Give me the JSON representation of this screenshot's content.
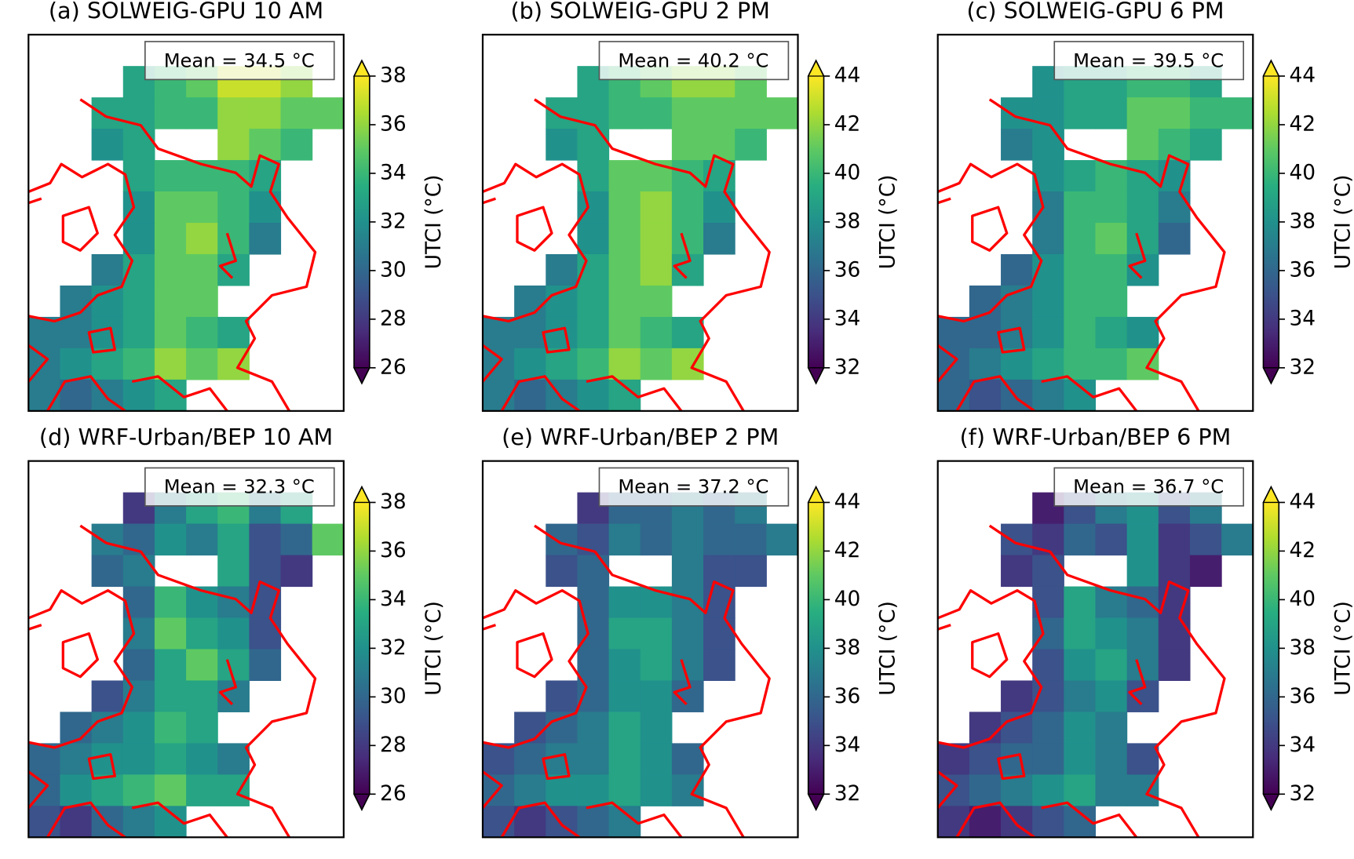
{
  "chart_data": [
    {
      "type": "heatmap",
      "title": "(a) SOLWEIG-GPU 10 AM",
      "annotation": "Mean = 34.5 °C",
      "colorbar_label": "UTCI (°C)",
      "colormap": "viridis",
      "extend": "both",
      "zlim": [
        26,
        38
      ],
      "zticks": [
        26,
        28,
        30,
        32,
        34,
        36,
        38
      ],
      "z": [
        [
          null,
          null,
          null,
          null,
          null,
          null,
          null,
          null,
          null,
          null
        ],
        [
          null,
          null,
          null,
          33,
          34,
          35,
          37,
          37,
          36,
          null
        ],
        [
          null,
          null,
          33,
          33,
          34,
          34,
          36,
          36,
          35,
          35
        ],
        [
          null,
          null,
          32,
          33,
          null,
          null,
          36,
          35,
          34,
          null
        ],
        [
          null,
          null,
          null,
          33,
          34,
          34,
          34,
          33,
          null,
          null
        ],
        [
          null,
          null,
          null,
          32,
          35,
          35,
          34,
          32,
          null,
          null
        ],
        [
          null,
          null,
          null,
          32,
          35,
          36,
          34,
          31,
          null,
          null
        ],
        [
          null,
          null,
          31,
          33,
          35,
          35,
          33,
          null,
          null,
          null
        ],
        [
          null,
          31,
          32,
          33,
          35,
          35,
          null,
          null,
          null,
          null
        ],
        [
          31,
          31,
          32,
          33,
          35,
          34,
          33,
          null,
          null,
          null
        ],
        [
          31,
          32,
          33,
          34,
          36,
          35,
          36,
          null,
          null,
          null
        ],
        [
          31,
          30,
          31,
          32,
          33,
          null,
          null,
          null,
          null,
          null
        ]
      ]
    },
    {
      "type": "heatmap",
      "title": "(b) SOLWEIG-GPU 2 PM",
      "annotation": "Mean = 40.2 °C",
      "colorbar_label": "UTCI (°C)",
      "colormap": "viridis",
      "extend": "both",
      "zlim": [
        32,
        44
      ],
      "zticks": [
        32,
        34,
        36,
        38,
        40,
        42,
        44
      ],
      "z": [
        [
          null,
          null,
          null,
          null,
          null,
          null,
          null,
          null,
          null,
          null
        ],
        [
          null,
          null,
          null,
          39,
          40,
          41,
          42,
          42,
          41,
          null
        ],
        [
          null,
          null,
          39,
          39,
          40,
          40,
          41,
          41,
          41,
          41
        ],
        [
          null,
          null,
          38,
          39,
          null,
          null,
          41,
          41,
          40,
          null
        ],
        [
          null,
          null,
          null,
          39,
          41,
          41,
          40,
          39,
          null,
          null
        ],
        [
          null,
          null,
          null,
          38,
          41,
          42,
          40,
          38,
          null,
          null
        ],
        [
          null,
          null,
          null,
          38,
          41,
          42,
          40,
          37,
          null,
          null
        ],
        [
          null,
          null,
          37,
          39,
          41,
          42,
          39,
          null,
          null,
          null
        ],
        [
          null,
          37,
          38,
          39,
          41,
          41,
          null,
          null,
          null,
          null
        ],
        [
          37,
          37,
          38,
          39,
          41,
          40,
          39,
          null,
          null,
          null
        ],
        [
          37,
          38,
          39,
          40,
          42,
          41,
          42,
          null,
          null,
          null
        ],
        [
          37,
          36,
          37,
          38,
          39,
          null,
          null,
          null,
          null,
          null
        ]
      ]
    },
    {
      "type": "heatmap",
      "title": "(c) SOLWEIG-GPU 6 PM",
      "annotation": "Mean = 39.5 °C",
      "colorbar_label": "UTCI (°C)",
      "colormap": "viridis",
      "extend": "both",
      "zlim": [
        32,
        44
      ],
      "zticks": [
        32,
        34,
        36,
        38,
        40,
        42,
        44
      ],
      "z": [
        [
          null,
          null,
          null,
          null,
          null,
          null,
          null,
          null,
          null,
          null
        ],
        [
          null,
          null,
          null,
          38,
          39,
          39,
          40,
          40,
          39,
          null
        ],
        [
          null,
          null,
          38,
          38,
          39,
          39,
          41,
          41,
          40,
          40
        ],
        [
          null,
          null,
          37,
          38,
          null,
          null,
          41,
          40,
          39,
          null
        ],
        [
          null,
          null,
          null,
          38,
          39,
          40,
          39,
          38,
          null,
          null
        ],
        [
          null,
          null,
          null,
          37,
          40,
          40,
          39,
          37,
          null,
          null
        ],
        [
          null,
          null,
          null,
          37,
          40,
          41,
          39,
          36,
          null,
          null
        ],
        [
          null,
          null,
          36,
          38,
          40,
          40,
          38,
          null,
          null,
          null
        ],
        [
          null,
          36,
          37,
          38,
          40,
          40,
          null,
          null,
          null,
          null
        ],
        [
          36,
          36,
          37,
          38,
          40,
          39,
          38,
          null,
          null,
          null
        ],
        [
          36,
          37,
          38,
          39,
          40,
          40,
          41,
          null,
          null,
          null
        ],
        [
          36,
          35,
          36,
          37,
          38,
          null,
          null,
          null,
          null,
          null
        ]
      ]
    },
    {
      "type": "heatmap",
      "title": "(d) WRF-Urban/BEP 10 AM",
      "annotation": "Mean = 32.3 °C",
      "colorbar_label": "UTCI (°C)",
      "colormap": "viridis",
      "extend": "both",
      "zlim": [
        26,
        38
      ],
      "zticks": [
        26,
        28,
        30,
        32,
        34,
        36,
        38
      ],
      "z": [
        [
          null,
          null,
          null,
          null,
          null,
          null,
          null,
          null,
          null,
          null
        ],
        [
          null,
          null,
          null,
          28,
          31,
          33,
          34,
          31,
          33,
          null
        ],
        [
          null,
          null,
          31,
          30,
          32,
          31,
          33,
          29,
          30,
          35
        ],
        [
          null,
          null,
          30,
          31,
          null,
          null,
          33,
          29,
          28,
          null
        ],
        [
          null,
          null,
          null,
          30,
          34,
          32,
          31,
          29,
          null,
          null
        ],
        [
          null,
          null,
          null,
          31,
          35,
          33,
          32,
          29,
          null,
          null
        ],
        [
          null,
          null,
          null,
          30,
          33,
          35,
          33,
          30,
          null,
          null
        ],
        [
          null,
          null,
          29,
          31,
          33,
          33,
          31,
          null,
          null,
          null
        ],
        [
          null,
          30,
          31,
          32,
          34,
          33,
          null,
          null,
          null,
          null
        ],
        [
          30,
          31,
          32,
          32,
          33,
          32,
          31,
          null,
          null,
          null
        ],
        [
          30,
          32,
          33,
          34,
          35,
          33,
          33,
          null,
          null,
          null
        ],
        [
          29,
          28,
          30,
          31,
          32,
          null,
          null,
          null,
          null,
          null
        ]
      ]
    },
    {
      "type": "heatmap",
      "title": "(e) WRF-Urban/BEP 2 PM",
      "annotation": "Mean = 37.2 °C",
      "colorbar_label": "UTCI (°C)",
      "colormap": "viridis",
      "extend": "both",
      "zlim": [
        32,
        44
      ],
      "zticks": [
        32,
        34,
        36,
        38,
        40,
        42,
        44
      ],
      "z": [
        [
          null,
          null,
          null,
          null,
          null,
          null,
          null,
          null,
          null,
          null
        ],
        [
          null,
          null,
          null,
          34,
          36,
          36,
          37,
          36,
          37,
          null
        ],
        [
          null,
          null,
          36,
          35,
          37,
          36,
          37,
          36,
          36,
          37
        ],
        [
          null,
          null,
          35,
          36,
          null,
          null,
          37,
          35,
          35,
          null
        ],
        [
          null,
          null,
          null,
          36,
          38,
          38,
          37,
          35,
          null,
          null
        ],
        [
          null,
          null,
          null,
          36,
          39,
          39,
          37,
          35,
          null,
          null
        ],
        [
          null,
          null,
          null,
          36,
          38,
          39,
          37,
          35,
          null,
          null
        ],
        [
          null,
          null,
          35,
          36,
          38,
          38,
          36,
          null,
          null,
          null
        ],
        [
          null,
          35,
          36,
          37,
          39,
          38,
          null,
          null,
          null,
          null
        ],
        [
          35,
          36,
          37,
          37,
          39,
          38,
          36,
          null,
          null,
          null
        ],
        [
          36,
          37,
          38,
          38,
          39,
          38,
          37,
          null,
          null,
          null
        ],
        [
          35,
          34,
          35,
          36,
          37,
          null,
          null,
          null,
          null,
          null
        ]
      ]
    },
    {
      "type": "heatmap",
      "title": "(f) WRF-Urban/BEP 6 PM",
      "annotation": "Mean = 36.7 °C",
      "colorbar_label": "UTCI (°C)",
      "colormap": "viridis",
      "extend": "both",
      "zlim": [
        32,
        44
      ],
      "zticks": [
        32,
        34,
        36,
        38,
        40,
        42,
        44
      ],
      "z": [
        [
          null,
          null,
          null,
          null,
          null,
          null,
          null,
          null,
          null,
          null
        ],
        [
          null,
          null,
          null,
          33,
          35,
          37,
          38,
          35,
          37,
          null
        ],
        [
          null,
          null,
          35,
          34,
          36,
          35,
          38,
          34,
          35,
          37
        ],
        [
          null,
          null,
          34,
          35,
          null,
          null,
          38,
          34,
          33,
          null
        ],
        [
          null,
          null,
          null,
          35,
          39,
          37,
          36,
          34,
          null,
          null
        ],
        [
          null,
          null,
          null,
          36,
          39,
          38,
          37,
          34,
          null,
          null
        ],
        [
          null,
          null,
          null,
          35,
          38,
          39,
          37,
          34,
          null,
          null
        ],
        [
          null,
          null,
          34,
          35,
          37,
          38,
          35,
          null,
          null,
          null
        ],
        [
          null,
          34,
          35,
          36,
          38,
          37,
          null,
          null,
          null,
          null
        ],
        [
          34,
          35,
          36,
          36,
          38,
          37,
          35,
          null,
          null,
          null
        ],
        [
          35,
          36,
          37,
          38,
          39,
          37,
          37,
          null,
          null,
          null
        ],
        [
          34,
          33,
          34,
          35,
          36,
          null,
          null,
          null,
          null,
          null
        ]
      ]
    }
  ]
}
